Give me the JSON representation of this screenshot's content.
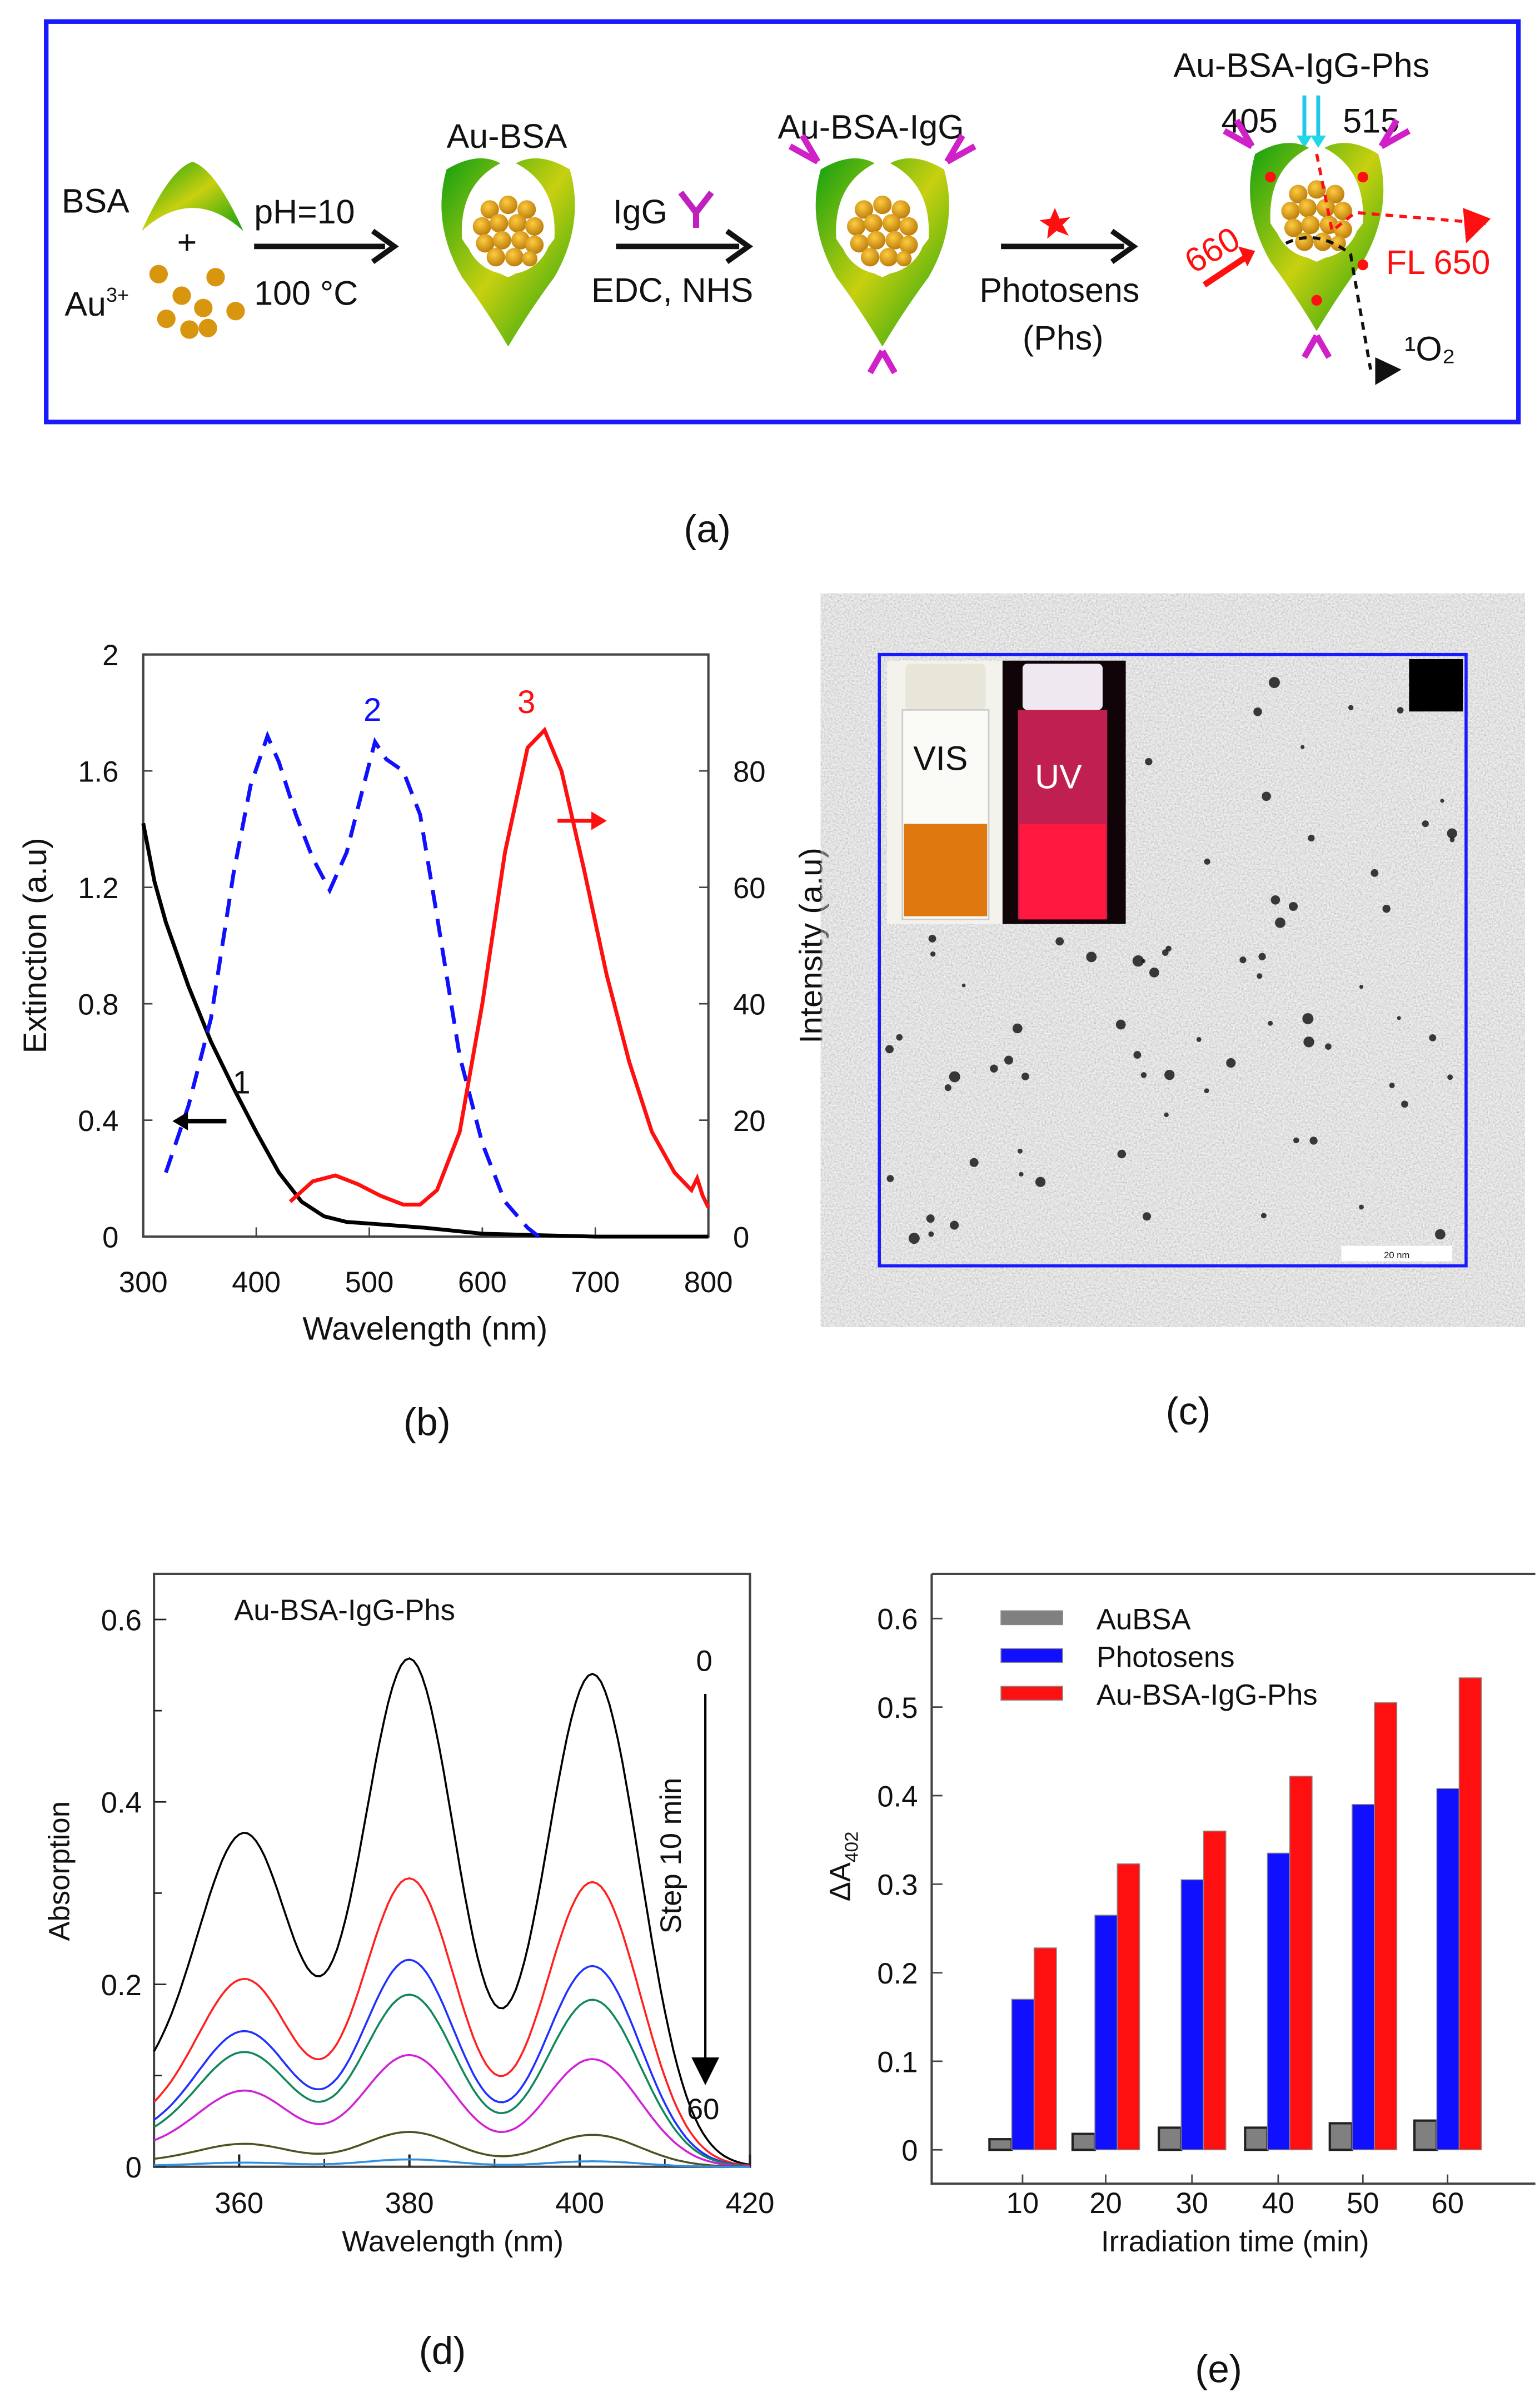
{
  "panel_labels": {
    "a": "(a)",
    "b": "(b)",
    "c": "(c)",
    "d": "(d)",
    "e": "(e)"
  },
  "scheme": {
    "bsa": "BSA",
    "plus": "+",
    "au_base": "Au",
    "au_sup": "3+",
    "step1_top": "pH=10",
    "step1_bottom": "100 °C",
    "au_bsa": "Au-BSA",
    "igg": "IgG",
    "step2_bottom": "EDC, NHS",
    "au_bsa_igg": "Au-BSA-IgG",
    "step3_line1": "Photosens",
    "step3_line2": "(Phs)",
    "au_bsa_igg_phs": "Au-BSA-IgG-Phs",
    "ex405": "405",
    "ex515": "515",
    "ex660": "660",
    "fl650": "FL 650",
    "singlet_oxygen": "¹O₂",
    "colors": {
      "frame": "#1a1aff",
      "gold": "#d8950e",
      "shell": "#1aa01a",
      "antibody": "#d020c8",
      "red": "#ff1010",
      "cyan": "#20c8e8"
    }
  },
  "tem": {
    "vis_label": "VIS",
    "uv_label": "UV",
    "scale_bar": "20 nm"
  },
  "chart_data": [
    {
      "id": "b",
      "type": "line",
      "xlabel": "Wavelength (nm)",
      "ylabel": "Extinction (a.u)",
      "ylabel_right": "Intensity (a.u)",
      "xlim": [
        300,
        800
      ],
      "ylim": [
        0,
        2
      ],
      "ylim_right": [
        0,
        100
      ],
      "xticks": [
        300,
        400,
        500,
        600,
        700,
        800
      ],
      "yticks": [
        "0",
        "0.4",
        "0.8",
        "1.2",
        "1.6",
        "2"
      ],
      "yticks_right": [
        "0",
        "20",
        "40",
        "60",
        "80"
      ],
      "series": [
        {
          "name": "1",
          "axis": "left",
          "color": "#000000",
          "style": "solid",
          "x": [
            300,
            310,
            320,
            340,
            360,
            380,
            400,
            420,
            440,
            460,
            480,
            500,
            550,
            600,
            650,
            700,
            800
          ],
          "y": [
            1.42,
            1.22,
            1.08,
            0.86,
            0.67,
            0.51,
            0.36,
            0.22,
            0.12,
            0.07,
            0.05,
            0.045,
            0.03,
            0.01,
            0.005,
            0.0,
            0.0
          ]
        },
        {
          "name": "2",
          "axis": "left",
          "color": "#1010ff",
          "style": "dashed",
          "x": [
            320,
            340,
            360,
            380,
            395,
            410,
            420,
            435,
            450,
            465,
            480,
            495,
            505,
            515,
            530,
            545,
            560,
            580,
            600,
            620,
            640,
            650
          ],
          "y": [
            0.22,
            0.45,
            0.75,
            1.25,
            1.55,
            1.72,
            1.63,
            1.45,
            1.3,
            1.19,
            1.32,
            1.55,
            1.7,
            1.64,
            1.6,
            1.45,
            1.1,
            0.62,
            0.32,
            0.12,
            0.03,
            0.0
          ]
        },
        {
          "name": "3",
          "axis": "right",
          "color": "#ff1010",
          "style": "solid",
          "x": [
            430,
            450,
            470,
            490,
            510,
            530,
            545,
            560,
            580,
            600,
            620,
            640,
            655,
            670,
            690,
            710,
            730,
            750,
            770,
            785,
            790,
            795,
            800
          ],
          "y": [
            6,
            9.5,
            10.5,
            9,
            7,
            5.5,
            5.5,
            8,
            18,
            40,
            66,
            84,
            87,
            80,
            63,
            45,
            30,
            18,
            11,
            8,
            10,
            7,
            5
          ]
        }
      ],
      "annotations": [
        {
          "text": "1",
          "color": "#000000",
          "arrow": "left"
        },
        {
          "text": "2",
          "color": "#1010ff"
        },
        {
          "text": "3",
          "color": "#ff1010",
          "arrow": "right"
        }
      ]
    },
    {
      "id": "d",
      "type": "line",
      "title": "Au-BSA-IgG-Phs",
      "xlabel": "Wavelength (nm)",
      "ylabel": "Absorption",
      "xlim": [
        350,
        420
      ],
      "ylim": [
        0,
        0.65
      ],
      "xticks": [
        360,
        380,
        400,
        420
      ],
      "yticks": [
        "0",
        "0.2",
        "0.4",
        "0.6"
      ],
      "arrow_start": "0",
      "arrow_end": "60",
      "arrow_label": "Step 10 min",
      "peak_wavelengths": [
        361,
        380,
        401.5
      ],
      "series": [
        {
          "name": "0 min",
          "color": "#000000",
          "peaks": [
            0.32,
            0.555,
            0.54
          ]
        },
        {
          "name": "10 min",
          "color": "#ff2020",
          "peaks": [
            0.18,
            0.315,
            0.312
          ]
        },
        {
          "name": "20 min",
          "color": "#2030ff",
          "peaks": [
            0.13,
            0.226,
            0.22
          ]
        },
        {
          "name": "30 min",
          "color": "#108858",
          "peaks": [
            0.11,
            0.188,
            0.183
          ]
        },
        {
          "name": "40 min",
          "color": "#d020d8",
          "peaks": [
            0.073,
            0.122,
            0.118
          ]
        },
        {
          "name": "50 min",
          "color": "#505020",
          "peaks": [
            0.022,
            0.038,
            0.035
          ]
        },
        {
          "name": "60 min",
          "color": "#3090e0",
          "peaks": [
            0.004,
            0.008,
            0.006
          ]
        }
      ]
    },
    {
      "id": "e",
      "type": "bar",
      "xlabel": "Irradiation time (min)",
      "ylabel_base": "ΔA",
      "ylabel_sub": "402",
      "ylim": [
        0,
        0.65
      ],
      "yticks": [
        "0",
        "0.1",
        "0.2",
        "0.3",
        "0.4",
        "0.5",
        "0.6"
      ],
      "categories": [
        "10",
        "20",
        "30",
        "40",
        "50",
        "60"
      ],
      "legend_position": "top-left",
      "series": [
        {
          "name": "AuBSA",
          "color": "#808080",
          "values": [
            0.012,
            0.018,
            0.025,
            0.025,
            0.03,
            0.033
          ]
        },
        {
          "name": "Photosens",
          "color": "#1010ff",
          "values": [
            0.17,
            0.265,
            0.305,
            0.335,
            0.39,
            0.408
          ]
        },
        {
          "name": "Au-BSA-IgG-Phs",
          "color": "#ff1010",
          "values": [
            0.228,
            0.323,
            0.36,
            0.422,
            0.505,
            0.533
          ]
        }
      ]
    }
  ]
}
